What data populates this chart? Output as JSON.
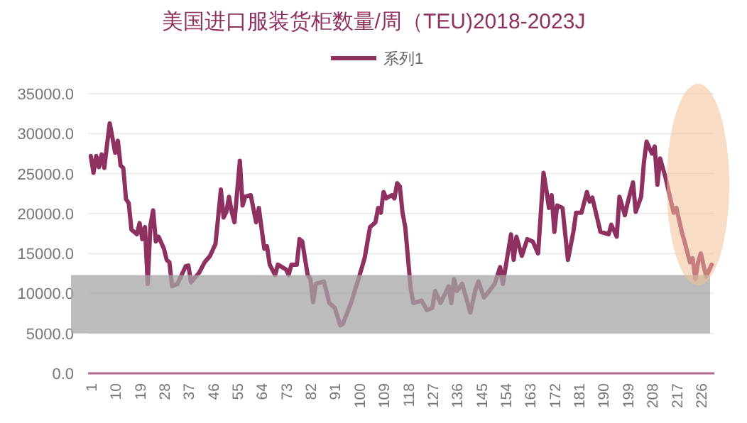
{
  "chart_data": {
    "type": "line",
    "title": "美国进口服装货柜数量/周（TEU)2018-2023J",
    "x": [
      1,
      2,
      3,
      4,
      5,
      6,
      7,
      8,
      9,
      10,
      11,
      12,
      13,
      14,
      15,
      16,
      18,
      19,
      20,
      21,
      22,
      23,
      24,
      25,
      26,
      28,
      29,
      30,
      31,
      33,
      36,
      37,
      38,
      39,
      41,
      43,
      45,
      47,
      49,
      50,
      51,
      52,
      53,
      54,
      56,
      57,
      58,
      60,
      62,
      63,
      65,
      66,
      67,
      69,
      70,
      73,
      74,
      75,
      77,
      78,
      79,
      81,
      82,
      83,
      84,
      87,
      89,
      91,
      93,
      94,
      97,
      100,
      102,
      104,
      106,
      107,
      108,
      109,
      110,
      112,
      113,
      114,
      115,
      116,
      117,
      119,
      120,
      123,
      125,
      127,
      128,
      130,
      133,
      134,
      135,
      136,
      138,
      139,
      141,
      143,
      144,
      146,
      148,
      150,
      152,
      153,
      156,
      157,
      158,
      160,
      162,
      164,
      166,
      168,
      169,
      170,
      171,
      172,
      173,
      175,
      177,
      179,
      180,
      182,
      184,
      185,
      186,
      189,
      192,
      193,
      195,
      196,
      198,
      199,
      201,
      202,
      204,
      205,
      206,
      208,
      209,
      210,
      211,
      213,
      214,
      216,
      217,
      219,
      220,
      222,
      223,
      224,
      225,
      226,
      228,
      230
    ],
    "series": [
      {
        "name": "系列1",
        "color": "#8e3060",
        "values": [
          27200,
          25100,
          27200,
          25800,
          27400,
          25700,
          28600,
          31300,
          29500,
          27600,
          29100,
          26000,
          25700,
          21800,
          21300,
          18000,
          17400,
          18800,
          16800,
          18300,
          11200,
          18500,
          20400,
          16500,
          17100,
          15600,
          14200,
          13900,
          10900,
          11200,
          13400,
          13500,
          11400,
          11800,
          12600,
          13900,
          14700,
          16200,
          23000,
          19500,
          20200,
          22100,
          20200,
          18900,
          26600,
          21000,
          22100,
          22300,
          18900,
          20700,
          15600,
          15900,
          13600,
          12300,
          13600,
          13000,
          12300,
          13600,
          13600,
          16800,
          16500,
          12300,
          11800,
          8900,
          11200,
          11500,
          8800,
          8200,
          6000,
          6200,
          8800,
          12100,
          14400,
          18300,
          18900,
          20700,
          20100,
          22700,
          21900,
          22300,
          21900,
          23800,
          23400,
          20100,
          18300,
          10600,
          8800,
          9100,
          7900,
          8200,
          10300,
          8800,
          10900,
          8800,
          11800,
          10300,
          11200,
          10000,
          7600,
          10600,
          11500,
          9500,
          10300,
          11200,
          13300,
          11200,
          17400,
          14200,
          17100,
          14700,
          16800,
          16500,
          15000,
          25100,
          23000,
          20700,
          22300,
          17700,
          21000,
          20700,
          14200,
          17700,
          20100,
          20100,
          22700,
          21500,
          22000,
          17700,
          17400,
          18600,
          17100,
          22100,
          19800,
          21300,
          23900,
          20200,
          22100,
          26300,
          29000,
          27500,
          28400,
          23600,
          26900,
          24500,
          23000,
          20100,
          20700,
          17700,
          16500,
          13900,
          14400,
          11800,
          13900,
          15000,
          12100,
          13600
        ]
      }
    ],
    "xlim": [
      0,
      231
    ],
    "xticks": [
      1,
      10,
      19,
      28,
      37,
      46,
      55,
      64,
      73,
      82,
      91,
      100,
      109,
      118,
      127,
      136,
      145,
      154,
      163,
      172,
      181,
      190,
      199,
      208,
      217,
      226
    ],
    "ylim": [
      0,
      35000
    ],
    "yticks": [
      {
        "value": 0,
        "label": "0.0"
      },
      {
        "value": 5000,
        "label": "5000.0"
      },
      {
        "value": 10000,
        "label": "10000.0"
      },
      {
        "value": 15000,
        "label": "15000.0"
      },
      {
        "value": 20000,
        "label": "20000.0"
      },
      {
        "value": 25000,
        "label": "25000.0"
      },
      {
        "value": 30000,
        "label": "30000.0"
      },
      {
        "value": 35000,
        "label": "35000.0"
      }
    ],
    "bands": [
      {
        "axis": "y",
        "from": 5000,
        "to": 12300,
        "color": "#a6a6a6"
      }
    ],
    "grid": "y",
    "legend": "top"
  }
}
